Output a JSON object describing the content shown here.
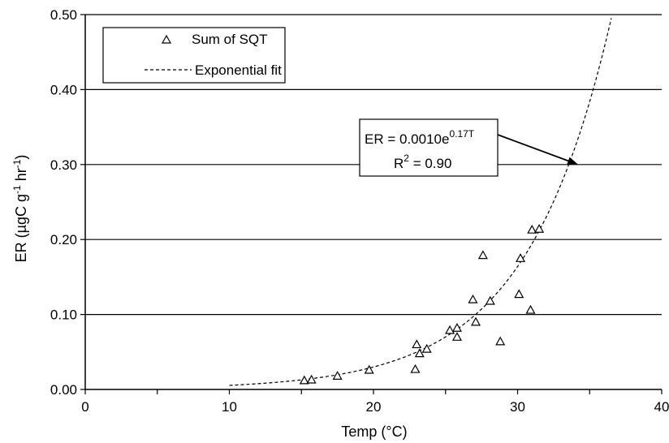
{
  "chart_data": {
    "type": "scatter",
    "title": "",
    "xlabel": "Temp (°C)",
    "ylabel": {
      "base": "ER (µgC g",
      "sup1": "-1",
      "mid": " hr",
      "sup2": "-1",
      "end": ")"
    },
    "xlim": [
      0,
      40
    ],
    "ylim": [
      0,
      0.5
    ],
    "x_ticks": [
      0,
      10,
      20,
      30,
      40
    ],
    "x_tick_labels": [
      "0",
      "10",
      "20",
      "30",
      "40"
    ],
    "y_ticks": [
      0,
      0.1,
      0.2,
      0.3,
      0.4,
      0.5
    ],
    "y_tick_labels": [
      "0.00",
      "0.10",
      "0.20",
      "0.30",
      "0.40",
      "0.50"
    ],
    "grid": "horizontal",
    "legend": {
      "position": "top-left",
      "entries": [
        {
          "label": "Sum of SQT",
          "marker": "triangle"
        },
        {
          "label": "Exponential fit",
          "marker": "dashed-line"
        }
      ]
    },
    "series": [
      {
        "name": "Sum of SQT",
        "marker": "triangle",
        "points": [
          [
            15.2,
            0.012
          ],
          [
            15.7,
            0.013
          ],
          [
            17.5,
            0.018
          ],
          [
            19.7,
            0.026
          ],
          [
            22.9,
            0.027
          ],
          [
            23.0,
            0.06
          ],
          [
            23.2,
            0.048
          ],
          [
            23.7,
            0.054
          ],
          [
            25.3,
            0.079
          ],
          [
            25.8,
            0.082
          ],
          [
            25.8,
            0.07
          ],
          [
            26.9,
            0.12
          ],
          [
            27.1,
            0.09
          ],
          [
            27.6,
            0.179
          ],
          [
            28.1,
            0.118
          ],
          [
            28.8,
            0.064
          ],
          [
            30.1,
            0.127
          ],
          [
            30.2,
            0.175
          ],
          [
            30.9,
            0.106
          ],
          [
            31.0,
            0.213
          ],
          [
            31.5,
            0.214
          ]
        ]
      },
      {
        "name": "Exponential fit",
        "style": "dashed",
        "equation": {
          "a": 0.001,
          "b": 0.17
        },
        "x_range": [
          10,
          36.5
        ]
      }
    ],
    "annotation": {
      "line1_base": "ER = 0.0010e",
      "line1_sup": "0.17T",
      "line2_base": "R",
      "line2_sup": "2",
      "line2_end": " = 0.90",
      "arrow_to": [
        34.2,
        0.3
      ]
    }
  }
}
